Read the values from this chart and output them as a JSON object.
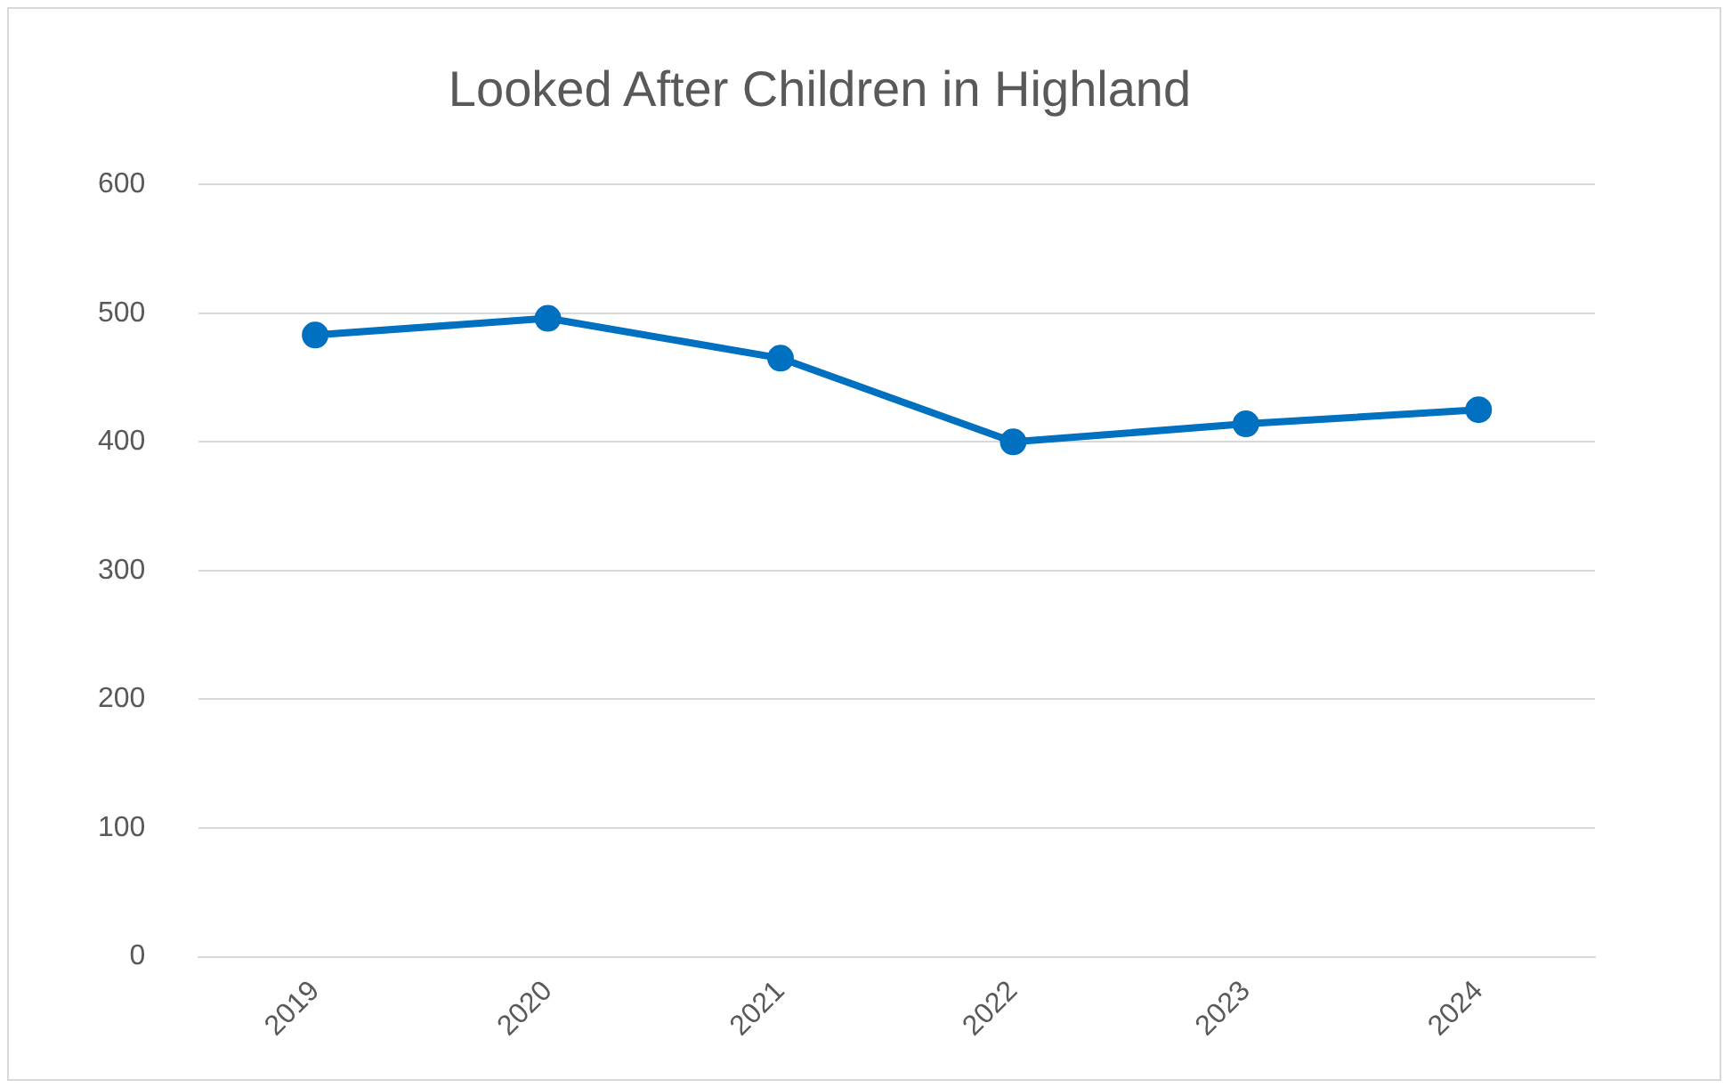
{
  "chart_data": {
    "type": "line",
    "title": "Looked After Children in Highland",
    "categories": [
      "2019",
      "2020",
      "2021",
      "2022",
      "2023",
      "2024"
    ],
    "series": [
      {
        "color": "#0070c0",
        "values": [
          483,
          496,
          465,
          400,
          414,
          425
        ]
      }
    ],
    "ylim": [
      0,
      600
    ],
    "yticks": [
      0,
      100,
      200,
      300,
      400,
      500,
      600
    ],
    "grid": "y",
    "legend": false,
    "marker": "circle",
    "line_style": "solid"
  }
}
